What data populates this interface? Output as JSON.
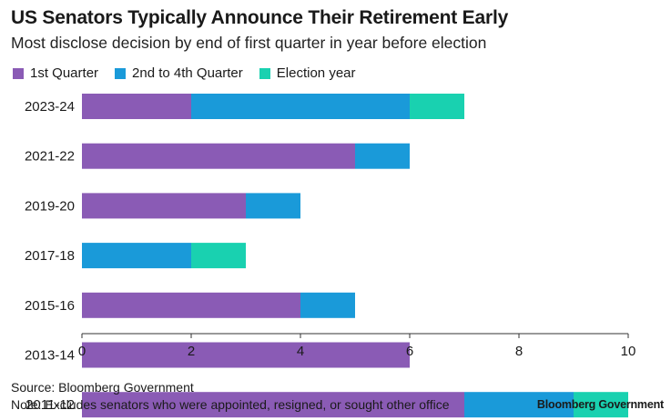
{
  "title": "US Senators Typically Announce Their Retirement Early",
  "subtitle": "Most disclose decision by end of first quarter in year before election",
  "source": "Source: Bloomberg Government",
  "note": "Note: Excludes senators who were appointed, resigned, or sought other office",
  "brand": "Bloomberg Government",
  "colors": {
    "q1": "#8a5bb5",
    "q2to4": "#1a9ad9",
    "election": "#19d1b0",
    "axis": "#333333"
  },
  "chart_data": {
    "type": "bar",
    "orientation": "horizontal",
    "stacked": true,
    "categories": [
      "2023-24",
      "2021-22",
      "2019-20",
      "2017-18",
      "2015-16",
      "2013-14",
      "2011-12"
    ],
    "series": [
      {
        "name": "1st Quarter",
        "color": "#8a5bb5",
        "values": [
          2,
          5,
          3,
          0,
          4,
          6,
          7
        ]
      },
      {
        "name": "2nd to 4th Quarter",
        "color": "#1a9ad9",
        "values": [
          4,
          1,
          1,
          2,
          1,
          0,
          2
        ]
      },
      {
        "name": "Election year",
        "color": "#19d1b0",
        "values": [
          1,
          0,
          0,
          1,
          0,
          0,
          1
        ]
      }
    ],
    "xlim": [
      0,
      10
    ],
    "xticks": [
      0,
      2,
      4,
      6,
      8,
      10
    ],
    "legend_position": "top-left",
    "grid": false
  }
}
